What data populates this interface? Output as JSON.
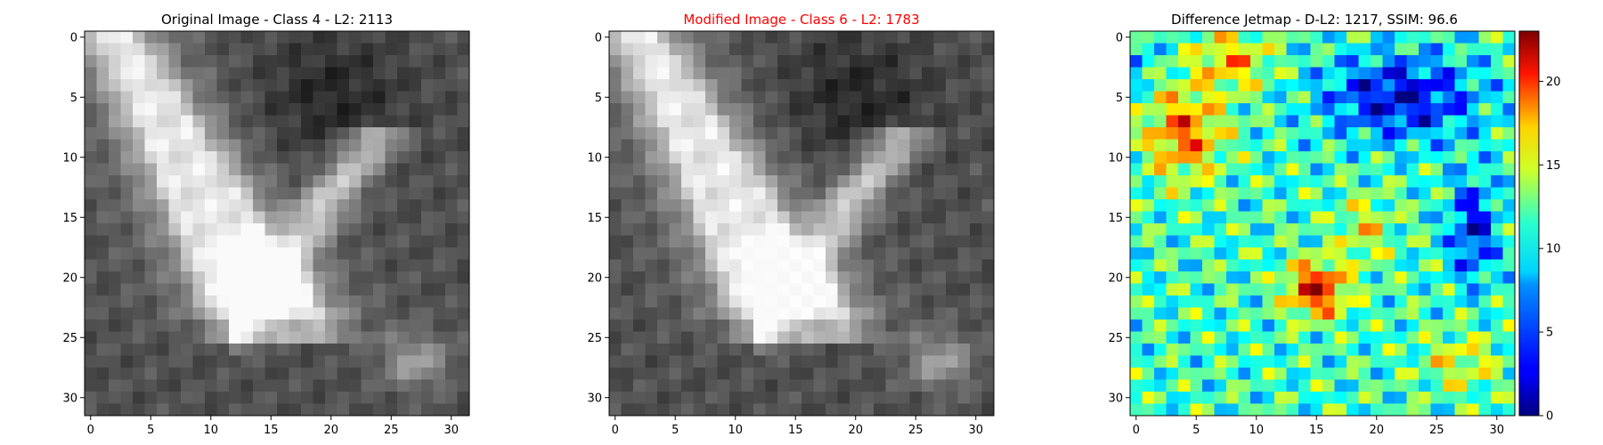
{
  "chart_data": [
    {
      "type": "heatmap",
      "title": "Original Image - Class 4 - L2: 2113",
      "title_color": "#000000",
      "colormap": "gray",
      "grid_size": 32,
      "xlim": [
        0,
        31
      ],
      "ylim": [
        0,
        31
      ],
      "xticks": [
        "0",
        "5",
        "10",
        "15",
        "20",
        "25",
        "30"
      ],
      "yticks": [
        "0",
        "5",
        "10",
        "15",
        "20",
        "25",
        "30"
      ]
    },
    {
      "type": "heatmap",
      "title": "Modified Image - Class 6 - L2: 1783",
      "title_color": "#ff0000",
      "colormap": "gray",
      "grid_size": 32,
      "xlim": [
        0,
        31
      ],
      "ylim": [
        0,
        31
      ],
      "xticks": [
        "0",
        "5",
        "10",
        "15",
        "20",
        "25",
        "30"
      ],
      "yticks": [
        "0",
        "5",
        "10",
        "15",
        "20",
        "25",
        "30"
      ]
    },
    {
      "type": "heatmap",
      "title": "Difference Jetmap - D-L2: 1217, SSIM: 96.6",
      "title_color": "#000000",
      "colormap": "jet",
      "grid_size": 32,
      "xlim": [
        0,
        31
      ],
      "ylim": [
        0,
        31
      ],
      "xticks": [
        "0",
        "5",
        "10",
        "15",
        "20",
        "25",
        "30"
      ],
      "yticks": [
        "0",
        "5",
        "10",
        "15",
        "20",
        "25",
        "30"
      ],
      "colorbar": {
        "range": [
          0,
          23
        ],
        "ticks": [
          "0",
          "5",
          "10",
          "15",
          "20"
        ]
      }
    }
  ]
}
